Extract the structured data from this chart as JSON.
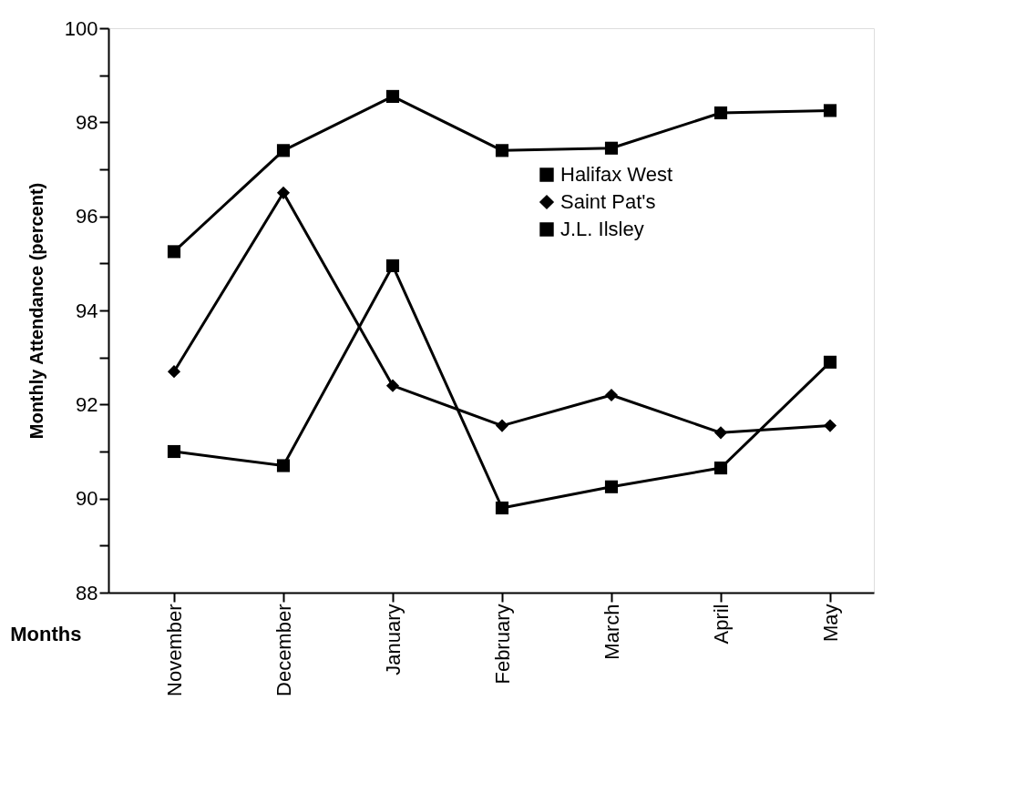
{
  "chart_data": {
    "type": "line",
    "xlabel": "Months",
    "ylabel": "Monthly Attendance (percent)",
    "categories": [
      "November",
      "December",
      "January",
      "February",
      "March",
      "April",
      "May"
    ],
    "series": [
      {
        "name": "Halifax West",
        "color": "#000000",
        "marker": "square",
        "values": [
          95.25,
          97.4,
          98.55,
          97.4,
          97.45,
          98.2,
          98.25
        ]
      },
      {
        "name": "Saint Pat's",
        "color": "#000000",
        "marker": "diamond",
        "values": [
          92.7,
          96.5,
          92.4,
          91.55,
          92.2,
          91.4,
          91.55
        ]
      },
      {
        "name": "J.L. Ilsley",
        "color": "#000000",
        "marker": "square",
        "values": [
          91.0,
          90.7,
          94.95,
          89.8,
          90.25,
          90.65,
          92.9
        ]
      }
    ],
    "ylim": [
      88,
      100
    ],
    "yticks": [
      88,
      {
        "value": 89,
        "label": null
      },
      90,
      {
        "value": 91,
        "label": null
      },
      92,
      {
        "value": 93,
        "label": null
      },
      94,
      {
        "value": 95,
        "label": null
      },
      96,
      {
        "value": 97,
        "label": null
      },
      98,
      {
        "value": 99,
        "label": null
      },
      100
    ],
    "grid": false,
    "legend": "top right",
    "line_style": "solid"
  }
}
